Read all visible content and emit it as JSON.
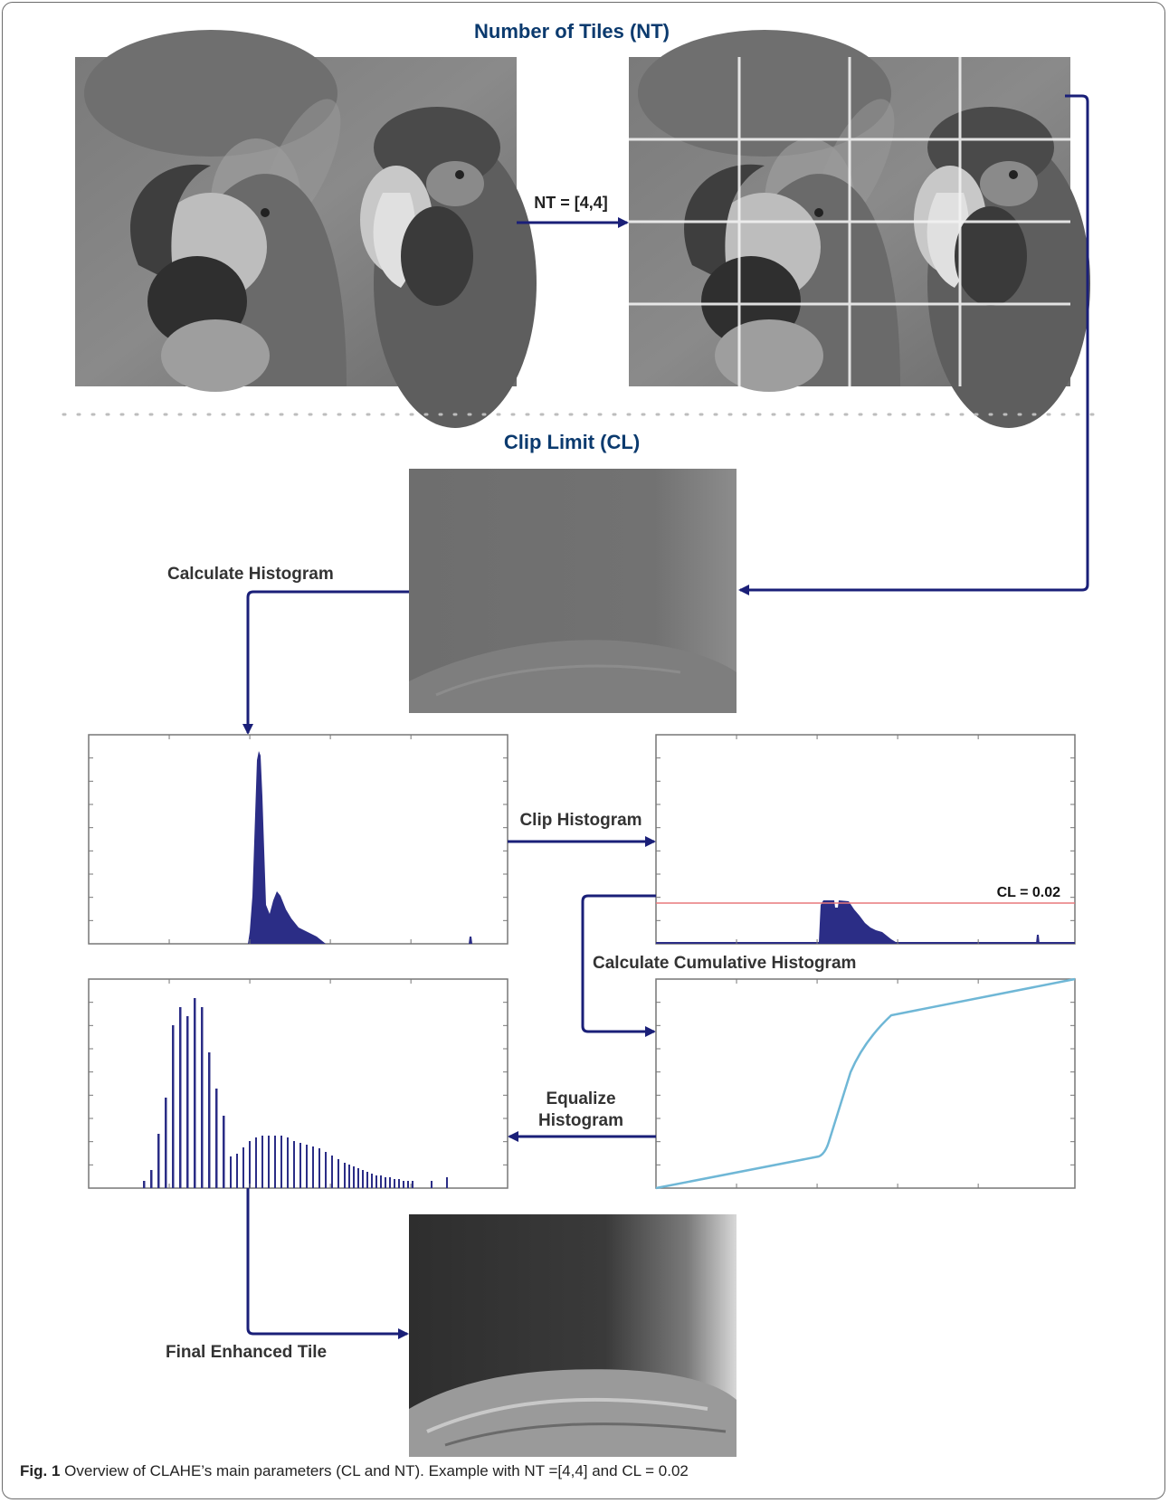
{
  "sections": {
    "nt_title": "Number of Tiles (NT)",
    "cl_title": "Clip Limit (CL)"
  },
  "labels": {
    "nt_arrow": "NT = [4,4]",
    "calculate_histogram": "Calculate Histogram",
    "clip_histogram": "Clip Histogram",
    "cl_value": "CL = 0.02",
    "calculate_cumulative": "Calculate Cumulative Histogram",
    "equalize_line1": "Equalize",
    "equalize_line2": "Histogram",
    "final_tile": "Final Enhanced Tile"
  },
  "caption": {
    "label": "Fig. 1",
    "text": "Overview of CLAHE’s main parameters (CL and NT). Example with NT =[4,4] and CL = 0.02"
  },
  "colors": {
    "title": "#0b3a6e",
    "arrow": "#1a1f78",
    "histogram": "#2b2d86",
    "clip_line": "#e8787c",
    "cdf_line": "#6fb7d6",
    "grid": "#e8e8e8"
  },
  "icons": [
    "parrot-photo",
    "parrot-grid-photo",
    "tile-photo",
    "enhanced-tile-photo"
  ]
}
